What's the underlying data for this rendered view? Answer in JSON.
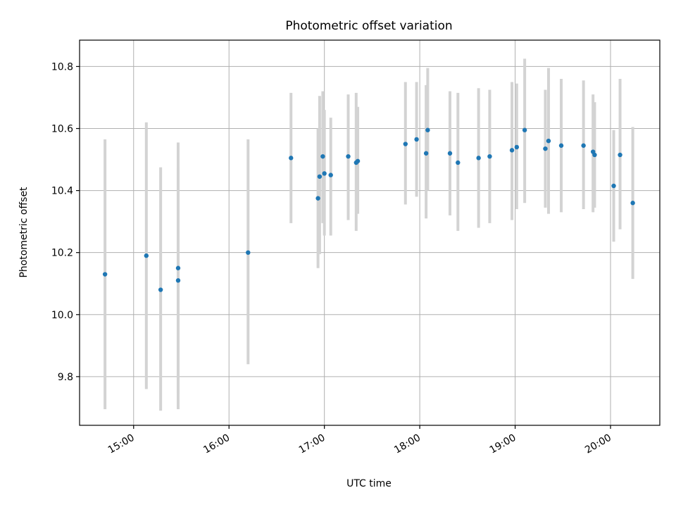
{
  "chart_data": {
    "type": "scatter",
    "title": "Photometric offset variation",
    "xlabel": "UTC time",
    "ylabel": "Photometric offset",
    "xlim": [
      "14:26",
      "20:31"
    ],
    "ylim": [
      9.643,
      10.885
    ],
    "x_ticks": [
      "15:00",
      "16:00",
      "17:00",
      "18:00",
      "19:00",
      "20:00"
    ],
    "y_ticks": [
      9.8,
      10.0,
      10.2,
      10.4,
      10.6,
      10.8
    ],
    "y_tick_labels": [
      "9.8",
      "10.0",
      "10.2",
      "10.4",
      "10.6",
      "10.8"
    ],
    "grid": true,
    "colors": {
      "points": "#1f77b4",
      "error_bars": "#d3d3d3"
    },
    "points": [
      {
        "x": "14:42",
        "y": 10.13,
        "lo": 9.695,
        "hi": 10.565
      },
      {
        "x": "15:08",
        "y": 10.19,
        "lo": 9.76,
        "hi": 10.62
      },
      {
        "x": "15:17",
        "y": 10.08,
        "lo": 9.69,
        "hi": 10.475
      },
      {
        "x": "15:28",
        "y": 10.11,
        "lo": 9.745,
        "hi": 10.475
      },
      {
        "x": "15:28",
        "y": 10.15,
        "lo": 9.695,
        "hi": 10.555
      },
      {
        "x": "16:12",
        "y": 10.2,
        "lo": 9.84,
        "hi": 10.565
      },
      {
        "x": "16:39",
        "y": 10.505,
        "lo": 10.295,
        "hi": 10.715
      },
      {
        "x": "16:56",
        "y": 10.375,
        "lo": 10.15,
        "hi": 10.6
      },
      {
        "x": "16:57",
        "y": 10.445,
        "lo": 10.195,
        "hi": 10.705
      },
      {
        "x": "16:59",
        "y": 10.51,
        "lo": 10.295,
        "hi": 10.72
      },
      {
        "x": "17:00",
        "y": 10.455,
        "lo": 10.255,
        "hi": 10.66
      },
      {
        "x": "17:04",
        "y": 10.45,
        "lo": 10.255,
        "hi": 10.635
      },
      {
        "x": "17:15",
        "y": 10.51,
        "lo": 10.305,
        "hi": 10.71
      },
      {
        "x": "17:20",
        "y": 10.49,
        "lo": 10.27,
        "hi": 10.715
      },
      {
        "x": "17:21",
        "y": 10.495,
        "lo": 10.325,
        "hi": 10.67
      },
      {
        "x": "17:51",
        "y": 10.55,
        "lo": 10.355,
        "hi": 10.75
      },
      {
        "x": "17:58",
        "y": 10.565,
        "lo": 10.38,
        "hi": 10.75
      },
      {
        "x": "18:04",
        "y": 10.52,
        "lo": 10.31,
        "hi": 10.74
      },
      {
        "x": "18:05",
        "y": 10.595,
        "lo": 10.4,
        "hi": 10.795
      },
      {
        "x": "18:19",
        "y": 10.52,
        "lo": 10.32,
        "hi": 10.72
      },
      {
        "x": "18:24",
        "y": 10.49,
        "lo": 10.27,
        "hi": 10.715
      },
      {
        "x": "18:37",
        "y": 10.505,
        "lo": 10.28,
        "hi": 10.73
      },
      {
        "x": "18:44",
        "y": 10.51,
        "lo": 10.295,
        "hi": 10.725
      },
      {
        "x": "18:58",
        "y": 10.53,
        "lo": 10.305,
        "hi": 10.75
      },
      {
        "x": "19:01",
        "y": 10.54,
        "lo": 10.34,
        "hi": 10.745
      },
      {
        "x": "19:06",
        "y": 10.595,
        "lo": 10.36,
        "hi": 10.825
      },
      {
        "x": "19:19",
        "y": 10.535,
        "lo": 10.345,
        "hi": 10.725
      },
      {
        "x": "19:21",
        "y": 10.56,
        "lo": 10.325,
        "hi": 10.795
      },
      {
        "x": "19:29",
        "y": 10.545,
        "lo": 10.33,
        "hi": 10.76
      },
      {
        "x": "19:43",
        "y": 10.545,
        "lo": 10.34,
        "hi": 10.755
      },
      {
        "x": "19:49",
        "y": 10.525,
        "lo": 10.33,
        "hi": 10.71
      },
      {
        "x": "19:50",
        "y": 10.515,
        "lo": 10.345,
        "hi": 10.685
      },
      {
        "x": "20:02",
        "y": 10.415,
        "lo": 10.235,
        "hi": 10.595
      },
      {
        "x": "20:06",
        "y": 10.515,
        "lo": 10.275,
        "hi": 10.76
      },
      {
        "x": "20:14",
        "y": 10.36,
        "lo": 10.115,
        "hi": 10.605
      }
    ]
  }
}
